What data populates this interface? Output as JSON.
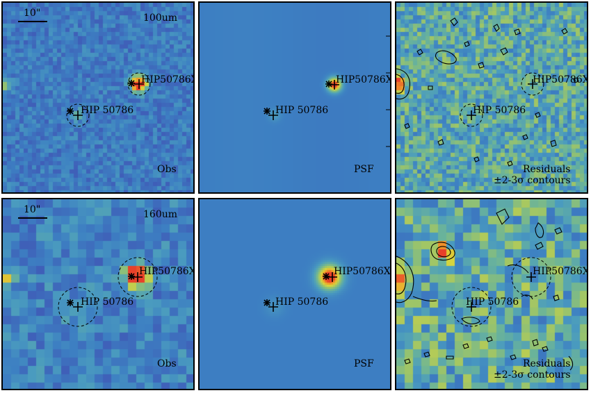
{
  "rows": [
    {
      "band": "100um",
      "scale_bar": "10\"",
      "panels": [
        {
          "id": "obs",
          "label": "Obs",
          "sources": [
            "HIP50786X",
            "HIP 50786"
          ]
        },
        {
          "id": "psf",
          "label": "PSF",
          "sources": [
            "HIP50786X",
            "HIP 50786"
          ]
        },
        {
          "id": "res",
          "label": "Residuals",
          "label2": "±2-3σ contours",
          "sources": [
            "HIP50786X",
            "HIP 50786"
          ]
        }
      ]
    },
    {
      "band": "160um",
      "scale_bar": "10\"",
      "panels": [
        {
          "id": "obs",
          "label": "Obs",
          "sources": [
            "HIP50786X",
            "HIP 50786"
          ]
        },
        {
          "id": "psf",
          "label": "PSF",
          "sources": [
            "HIP50786X",
            "HIP 50786"
          ]
        },
        {
          "id": "res",
          "label": "Residuals",
          "label2": "±2-3σ contours",
          "sources": [
            "HIP50786X",
            "HIP 50786"
          ]
        }
      ]
    }
  ],
  "colormap": [
    "#3d1b78",
    "#4f3aa0",
    "#3f5fb8",
    "#3d7fc2",
    "#4a9bbf",
    "#6ab39a",
    "#9bc46a",
    "#d8d53c",
    "#f0a22a",
    "#e8402a"
  ],
  "psf_background": "#3d6fc0"
}
